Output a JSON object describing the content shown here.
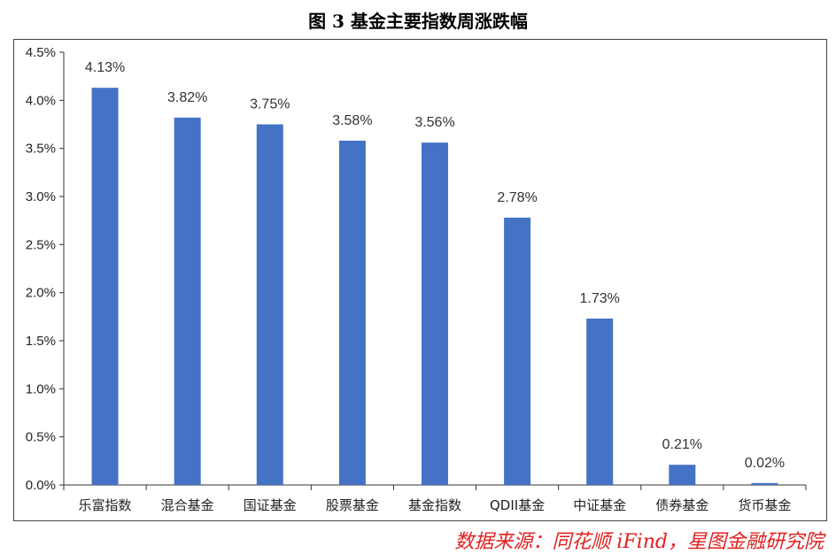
{
  "title": "图 3 基金主要指数周涨跌幅",
  "source": "数据来源：同花顺 iFind，星图金融研究院",
  "chart_data": {
    "type": "bar",
    "title": "图 3 基金主要指数周涨跌幅",
    "xlabel": "",
    "ylabel": "",
    "categories": [
      "乐富指数",
      "混合基金",
      "国证基金",
      "股票基金",
      "基金指数",
      "QDII基金",
      "中证基金",
      "债券基金",
      "货币基金"
    ],
    "values": [
      4.13,
      3.82,
      3.75,
      3.58,
      3.56,
      2.78,
      1.73,
      0.21,
      0.02
    ],
    "data_labels": [
      "4.13%",
      "3.82%",
      "3.75%",
      "3.58%",
      "3.56%",
      "2.78%",
      "1.73%",
      "0.21%",
      "0.02%"
    ],
    "yticks": [
      "0.0%",
      "0.5%",
      "1.0%",
      "1.5%",
      "2.0%",
      "2.5%",
      "3.0%",
      "3.5%",
      "4.0%",
      "4.5%"
    ],
    "ylim": [
      0,
      4.5
    ],
    "grid": false,
    "legend": "none",
    "bar_color": "#4472c4"
  }
}
